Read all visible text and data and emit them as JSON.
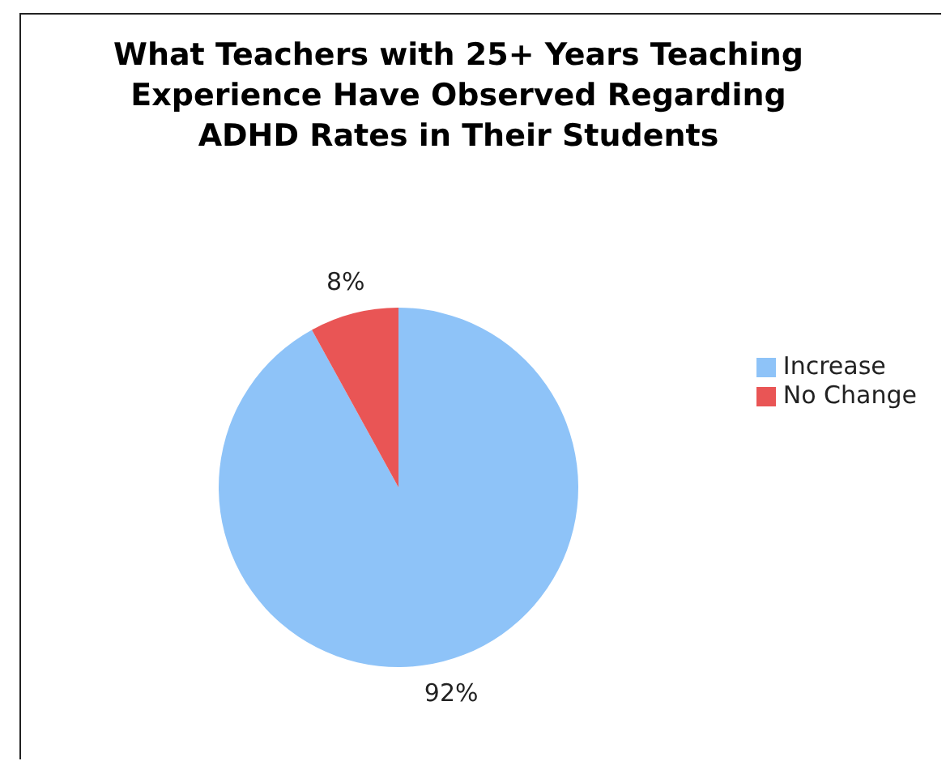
{
  "chart_data": {
    "type": "pie",
    "title": "What Teachers with 25+ Years Teaching Experience Have Observed Regarding ADHD Rates in Their Students",
    "categories": [
      "Increase",
      "No Change"
    ],
    "values": [
      92,
      8
    ],
    "colors": [
      "#8ec3f8",
      "#e95555"
    ],
    "value_labels": [
      "92%",
      "8%"
    ],
    "legend": "right"
  }
}
